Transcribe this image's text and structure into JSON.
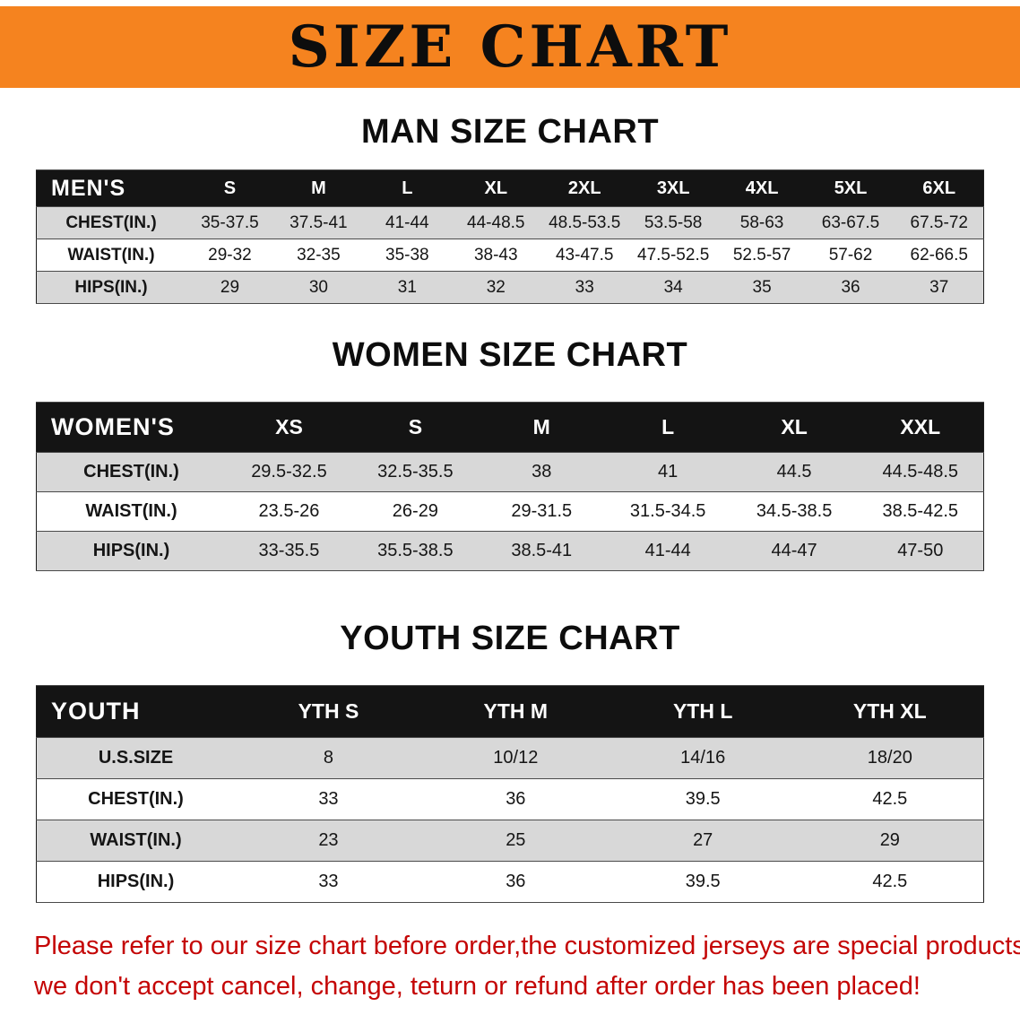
{
  "banner": {
    "title": "SIZE CHART",
    "bg_color": "#f5831f",
    "text_color": "#0d0d0d"
  },
  "sections": {
    "men": {
      "heading": "MAN SIZE CHART",
      "table": {
        "corner": "MEN'S",
        "columns": [
          "S",
          "M",
          "L",
          "XL",
          "2XL",
          "3XL",
          "4XL",
          "5XL",
          "6XL"
        ],
        "rows": [
          {
            "label": "CHEST(IN.)",
            "values": [
              "35-37.5",
              "37.5-41",
              "41-44",
              "44-48.5",
              "48.5-53.5",
              "53.5-58",
              "58-63",
              "63-67.5",
              "67.5-72"
            ]
          },
          {
            "label": "WAIST(IN.)",
            "values": [
              "29-32",
              "32-35",
              "35-38",
              "38-43",
              "43-47.5",
              "47.5-52.5",
              "52.5-57",
              "57-62",
              "62-66.5"
            ]
          },
          {
            "label": "HIPS(IN.)",
            "values": [
              "29",
              "30",
              "31",
              "32",
              "33",
              "34",
              "35",
              "36",
              "37"
            ]
          }
        ]
      }
    },
    "women": {
      "heading": "WOMEN SIZE CHART",
      "table": {
        "corner": "WOMEN'S",
        "columns": [
          "XS",
          "S",
          "M",
          "L",
          "XL",
          "XXL"
        ],
        "rows": [
          {
            "label": "CHEST(IN.)",
            "values": [
              "29.5-32.5",
              "32.5-35.5",
              "38",
              "41",
              "44.5",
              "44.5-48.5"
            ]
          },
          {
            "label": "WAIST(IN.)",
            "values": [
              "23.5-26",
              "26-29",
              "29-31.5",
              "31.5-34.5",
              "34.5-38.5",
              "38.5-42.5"
            ]
          },
          {
            "label": "HIPS(IN.)",
            "values": [
              "33-35.5",
              "35.5-38.5",
              "38.5-41",
              "41-44",
              "44-47",
              "47-50"
            ]
          }
        ]
      }
    },
    "youth": {
      "heading": "YOUTH SIZE CHART",
      "table": {
        "corner": "YOUTH",
        "columns": [
          "YTH S",
          "YTH M",
          "YTH L",
          "YTH XL"
        ],
        "rows": [
          {
            "label": "U.S.SIZE",
            "values": [
              "8",
              "10/12",
              "14/16",
              "18/20"
            ]
          },
          {
            "label": "CHEST(IN.)",
            "values": [
              "33",
              "36",
              "39.5",
              "42.5"
            ]
          },
          {
            "label": "WAIST(IN.)",
            "values": [
              "23",
              "25",
              "27",
              "29"
            ]
          },
          {
            "label": "HIPS(IN.)",
            "values": [
              "33",
              "36",
              "39.5",
              "42.5"
            ]
          }
        ]
      }
    }
  },
  "footer": {
    "line1": "Please refer to our size chart before order,the customized jerseys are special products,",
    "line2": "we don't accept cancel, change, teturn or refund after order has been placed!",
    "text_color": "#c40505"
  }
}
